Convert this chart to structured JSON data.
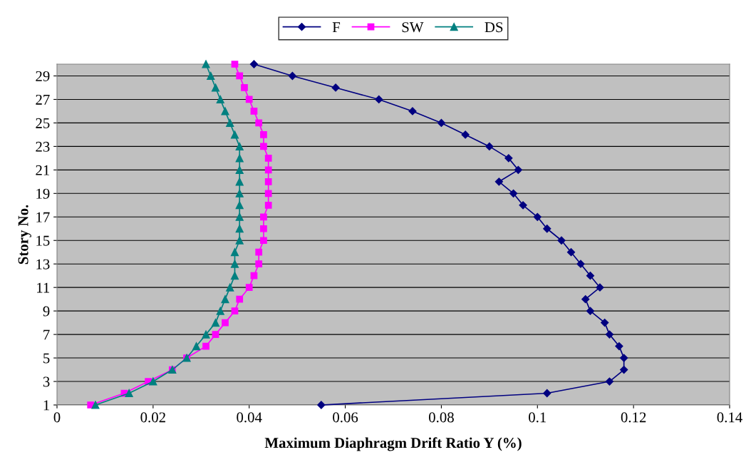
{
  "chart_data": {
    "type": "line",
    "xlabel": "Maximum Diaphragm Drift Ratio Y (%)",
    "ylabel": "Story No.",
    "xlim": [
      0,
      0.14
    ],
    "xticks": [
      0,
      0.02,
      0.04,
      0.06,
      0.08,
      0.1,
      0.12,
      0.14
    ],
    "ylim": [
      1,
      30
    ],
    "yticks": [
      1,
      3,
      5,
      7,
      9,
      11,
      13,
      15,
      17,
      19,
      21,
      23,
      25,
      27,
      29
    ],
    "grid": "y",
    "legend": "top",
    "series": [
      {
        "name": "F",
        "color": "#000080",
        "marker": "diamond",
        "x": [
          0.055,
          0.102,
          0.115,
          0.118,
          0.118,
          0.117,
          0.115,
          0.114,
          0.111,
          0.11,
          0.113,
          0.111,
          0.109,
          0.107,
          0.105,
          0.102,
          0.1,
          0.097,
          0.095,
          0.092,
          0.096,
          0.094,
          0.09,
          0.085,
          0.08,
          0.074,
          0.067,
          0.058,
          0.049,
          0.041
        ],
        "values": [
          1,
          2,
          3,
          4,
          5,
          6,
          7,
          8,
          9,
          10,
          11,
          12,
          13,
          14,
          15,
          16,
          17,
          18,
          19,
          20,
          21,
          22,
          23,
          24,
          25,
          26,
          27,
          28,
          29,
          30
        ]
      },
      {
        "name": "SW",
        "color": "#ff00ff",
        "marker": "square",
        "x": [
          0.007,
          0.014,
          0.019,
          0.024,
          0.027,
          0.031,
          0.033,
          0.035,
          0.037,
          0.038,
          0.04,
          0.041,
          0.042,
          0.042,
          0.043,
          0.043,
          0.043,
          0.044,
          0.044,
          0.044,
          0.044,
          0.044,
          0.043,
          0.043,
          0.042,
          0.041,
          0.04,
          0.039,
          0.038,
          0.037
        ],
        "values": [
          1,
          2,
          3,
          4,
          5,
          6,
          7,
          8,
          9,
          10,
          11,
          12,
          13,
          14,
          15,
          16,
          17,
          18,
          19,
          20,
          21,
          22,
          23,
          24,
          25,
          26,
          27,
          28,
          29,
          30
        ]
      },
      {
        "name": "DS",
        "color": "#008080",
        "marker": "triangle",
        "x": [
          0.008,
          0.015,
          0.02,
          0.024,
          0.027,
          0.029,
          0.031,
          0.033,
          0.034,
          0.035,
          0.036,
          0.037,
          0.037,
          0.037,
          0.038,
          0.038,
          0.038,
          0.038,
          0.038,
          0.038,
          0.038,
          0.038,
          0.038,
          0.037,
          0.036,
          0.035,
          0.034,
          0.033,
          0.032,
          0.031
        ],
        "values": [
          1,
          2,
          3,
          4,
          5,
          6,
          7,
          8,
          9,
          10,
          11,
          12,
          13,
          14,
          15,
          16,
          17,
          18,
          19,
          20,
          21,
          22,
          23,
          24,
          25,
          26,
          27,
          28,
          29,
          30
        ]
      }
    ]
  }
}
